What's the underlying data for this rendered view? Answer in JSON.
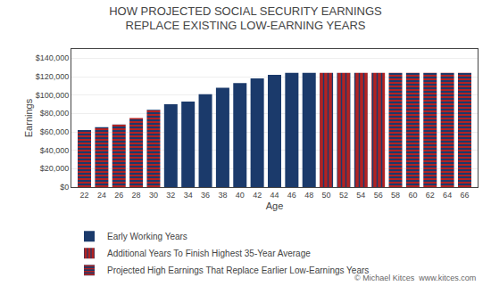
{
  "chart_data": {
    "type": "bar",
    "title": "HOW PROJECTED SOCIAL SECURITY EARNINGS\nREPLACE EXISTING LOW-EARNING YEARS",
    "xlabel": "Age",
    "ylabel": "Earnings",
    "x": [
      22,
      24,
      26,
      28,
      30,
      32,
      34,
      36,
      38,
      40,
      42,
      44,
      46,
      48,
      50,
      52,
      54,
      56,
      58,
      60,
      62,
      64,
      66
    ],
    "series": [
      {
        "name": "Early Working Years",
        "color": "#1B3A6B",
        "values": [
          null,
          null,
          null,
          null,
          null,
          90000,
          93000,
          101000,
          108000,
          113000,
          118000,
          122000,
          124000,
          124000,
          null,
          null,
          null,
          null,
          null,
          null,
          null,
          null,
          null
        ]
      },
      {
        "name": "Additional Years To Finish Highest 35-Year Average",
        "color": "#B22222",
        "values": [
          null,
          null,
          null,
          null,
          null,
          null,
          null,
          null,
          null,
          null,
          null,
          null,
          null,
          null,
          124000,
          124000,
          124000,
          124000,
          null,
          null,
          null,
          null,
          null
        ]
      },
      {
        "name": "Projected High Earnings That Replace Earlier Low-Earnings Years",
        "values": [
          62000,
          65000,
          68000,
          75000,
          84000,
          null,
          null,
          null,
          null,
          null,
          null,
          null,
          null,
          null,
          null,
          null,
          null,
          null,
          124000,
          124000,
          124000,
          124000,
          124000
        ]
      }
    ],
    "xlim": [
      20.5,
      67.5
    ],
    "xticks": [
      22,
      24,
      26,
      28,
      30,
      32,
      34,
      36,
      38,
      40,
      42,
      44,
      46,
      48,
      50,
      52,
      54,
      56,
      58,
      60,
      62,
      64,
      66
    ],
    "ylim": [
      0,
      150000
    ],
    "yticks": [
      {
        "value": 0,
        "label": "$0"
      },
      {
        "value": 20000,
        "label": "$20,000"
      },
      {
        "value": 40000,
        "label": "$40,000"
      },
      {
        "value": 60000,
        "label": "$60,000"
      },
      {
        "value": 80000,
        "label": "$80,000"
      },
      {
        "value": 100000,
        "label": "$100,000"
      },
      {
        "value": 120000,
        "label": "$120,000"
      },
      {
        "value": 140000,
        "label": "$140,000"
      }
    ],
    "grid": true,
    "annotations": [
      "© Michael Kitces  www.kitces.com"
    ]
  }
}
